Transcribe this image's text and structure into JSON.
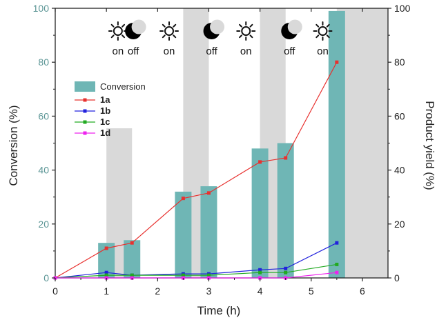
{
  "chart_data": {
    "type": "bar+line",
    "xlabel": "Time (h)",
    "ylabel_left": "Conversion (%)",
    "ylabel_right": "Product yield (%)",
    "xlim": [
      0,
      6.5
    ],
    "ylim": [
      0,
      100
    ],
    "x_ticks": [
      0,
      1,
      2,
      3,
      4,
      5,
      6
    ],
    "y_ticks": [
      0,
      20,
      40,
      60,
      80,
      100
    ],
    "dark_intervals": [
      [
        1,
        1.5
      ],
      [
        2.5,
        3
      ],
      [
        4,
        4.5
      ],
      [
        5.5,
        6.5
      ]
    ],
    "dark_bands_top": [
      55.5,
      100,
      100,
      100
    ],
    "phases": [
      {
        "x": 1.05,
        "label": "on",
        "icon": "sun-icon"
      },
      {
        "x": 1.35,
        "label": "off",
        "icon": "moon-icon"
      },
      {
        "x": 2.05,
        "label": "on",
        "icon": "sun-icon"
      },
      {
        "x": 2.88,
        "label": "off",
        "icon": "moon-icon"
      },
      {
        "x": 3.55,
        "label": "on",
        "icon": "sun-icon"
      },
      {
        "x": 4.4,
        "label": "off",
        "icon": "moon-icon"
      },
      {
        "x": 5.05,
        "label": "on",
        "icon": "sun-icon"
      }
    ],
    "bars": {
      "name": "Conversion",
      "color": "#6fb6b5",
      "x": [
        1,
        1.5,
        2.5,
        3,
        4,
        4.5,
        5.5
      ],
      "values": [
        13,
        14,
        32,
        34,
        48,
        50,
        99
      ]
    },
    "series": [
      {
        "name": "1a",
        "color": "#e8312f",
        "x": [
          0,
          1,
          1.5,
          2.5,
          3,
          4,
          4.5,
          5.5
        ],
        "values": [
          0,
          11,
          13,
          29.5,
          31.5,
          43,
          44.5,
          80
        ]
      },
      {
        "name": "1b",
        "color": "#2222dd",
        "x": [
          0,
          1,
          1.5,
          2.5,
          3,
          4,
          4.5,
          5.5
        ],
        "values": [
          0,
          2,
          1,
          1.5,
          1.5,
          3,
          3.5,
          13
        ]
      },
      {
        "name": "1c",
        "color": "#22aa22",
        "x": [
          0,
          1,
          1.5,
          2.5,
          3,
          4,
          4.5,
          5.5
        ],
        "values": [
          0,
          1,
          1,
          1,
          1,
          2,
          2,
          5
        ]
      },
      {
        "name": "1d",
        "color": "#ee22ee",
        "x": [
          0,
          1,
          1.5,
          2.5,
          3,
          4,
          4.5,
          5.5
        ],
        "values": [
          0,
          0,
          0,
          0,
          0,
          0,
          0,
          2
        ]
      }
    ],
    "legend_placement": "upper-left",
    "axis_label_color_left": "#5c9696"
  }
}
